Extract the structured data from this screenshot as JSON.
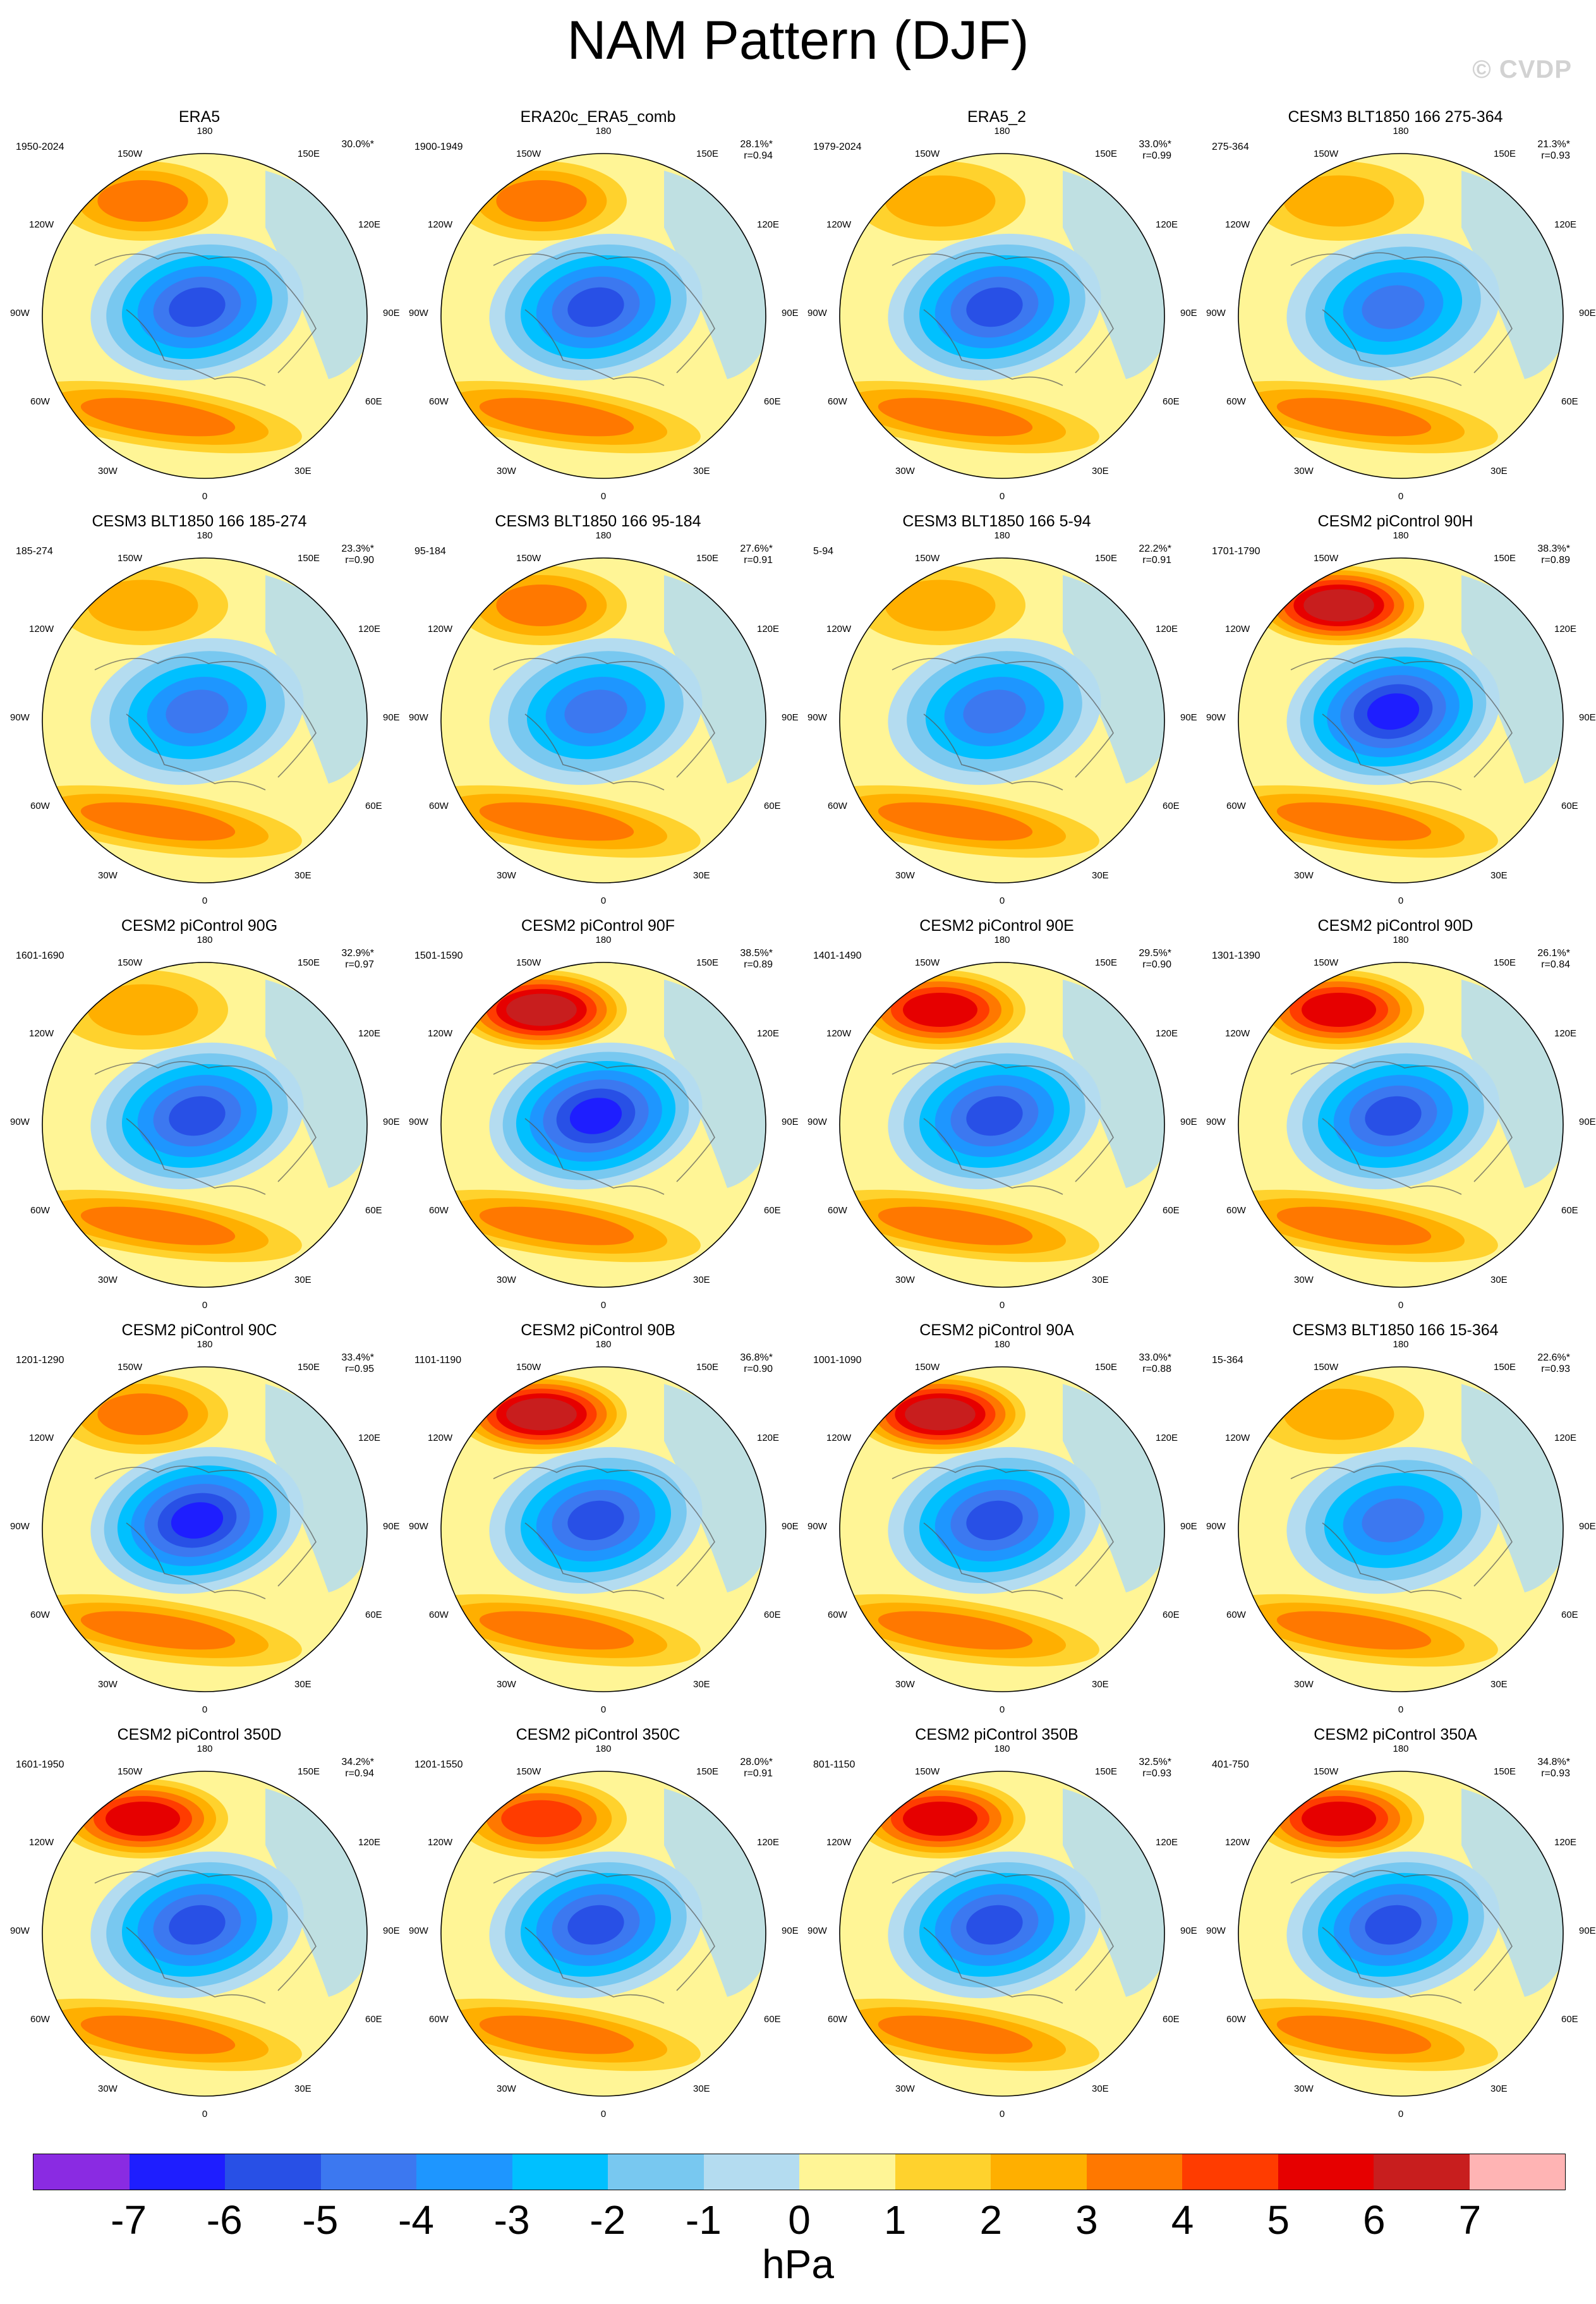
{
  "title": "NAM Pattern (DJF)",
  "watermark": "© CVDP",
  "longitude_labels": {
    "top": "180",
    "bottom": "0",
    "left_upper": "120W",
    "left_mid": "90W",
    "left_lower": "60W",
    "right_upper": "120E",
    "right_mid": "90E",
    "right_lower": "60E",
    "top_left": "150W",
    "top_right": "150E",
    "bottom_left": "30W",
    "bottom_right": "30E"
  },
  "panels": [
    {
      "name": "ERA5",
      "years": "1950-2024",
      "pct": "30.0%*",
      "r": "",
      "hi_level": 3,
      "lo_level": 5
    },
    {
      "name": "ERA20c_ERA5_comb",
      "years": "1900-1949",
      "pct": "28.1%*",
      "r": "r=0.94",
      "hi_level": 3,
      "lo_level": 5
    },
    {
      "name": "ERA5_2",
      "years": "1979-2024",
      "pct": "33.0%*",
      "r": "r=0.99",
      "hi_level": 2,
      "lo_level": 5
    },
    {
      "name": "CESM3 BLT1850 166 275-364",
      "years": "275-364",
      "pct": "21.3%*",
      "r": "r=0.93",
      "hi_level": 2,
      "lo_level": 4
    },
    {
      "name": "CESM3 BLT1850 166 185-274",
      "years": "185-274",
      "pct": "23.3%*",
      "r": "r=0.90",
      "hi_level": 2,
      "lo_level": 4
    },
    {
      "name": "CESM3 BLT1850 166 95-184",
      "years": "95-184",
      "pct": "27.6%*",
      "r": "r=0.91",
      "hi_level": 3,
      "lo_level": 4
    },
    {
      "name": "CESM3 BLT1850 166 5-94",
      "years": "5-94",
      "pct": "22.2%*",
      "r": "r=0.91",
      "hi_level": 2,
      "lo_level": 4
    },
    {
      "name": "CESM2 piControl 90H",
      "years": "1701-1790",
      "pct": "38.3%*",
      "r": "r=0.89",
      "hi_level": 6,
      "lo_level": 6
    },
    {
      "name": "CESM2 piControl 90G",
      "years": "1601-1690",
      "pct": "32.9%*",
      "r": "r=0.97",
      "hi_level": 2,
      "lo_level": 5
    },
    {
      "name": "CESM2 piControl 90F",
      "years": "1501-1590",
      "pct": "38.5%*",
      "r": "r=0.89",
      "hi_level": 6,
      "lo_level": 6
    },
    {
      "name": "CESM2 piControl 90E",
      "years": "1401-1490",
      "pct": "29.5%*",
      "r": "r=0.90",
      "hi_level": 5,
      "lo_level": 5
    },
    {
      "name": "CESM2 piControl 90D",
      "years": "1301-1390",
      "pct": "26.1%*",
      "r": "r=0.84",
      "hi_level": 5,
      "lo_level": 5
    },
    {
      "name": "CESM2 piControl 90C",
      "years": "1201-1290",
      "pct": "33.4%*",
      "r": "r=0.95",
      "hi_level": 3,
      "lo_level": 6
    },
    {
      "name": "CESM2 piControl 90B",
      "years": "1101-1190",
      "pct": "36.8%*",
      "r": "r=0.90",
      "hi_level": 6,
      "lo_level": 5
    },
    {
      "name": "CESM2 piControl 90A",
      "years": "1001-1090",
      "pct": "33.0%*",
      "r": "r=0.88",
      "hi_level": 6,
      "lo_level": 5
    },
    {
      "name": "CESM3 BLT1850 166 15-364",
      "years": "15-364",
      "pct": "22.6%*",
      "r": "r=0.93",
      "hi_level": 2,
      "lo_level": 4
    },
    {
      "name": "CESM2 piControl 350D",
      "years": "1601-1950",
      "pct": "34.2%*",
      "r": "r=0.94",
      "hi_level": 5,
      "lo_level": 5
    },
    {
      "name": "CESM2 piControl 350C",
      "years": "1201-1550",
      "pct": "28.0%*",
      "r": "r=0.91",
      "hi_level": 4,
      "lo_level": 5
    },
    {
      "name": "CESM2 piControl 350B",
      "years": "801-1150",
      "pct": "32.5%*",
      "r": "r=0.93",
      "hi_level": 5,
      "lo_level": 5
    },
    {
      "name": "CESM2 piControl 350A",
      "years": "401-750",
      "pct": "34.8%*",
      "r": "r=0.93",
      "hi_level": 5,
      "lo_level": 5
    }
  ],
  "colorbar": {
    "colors": [
      "#8a2be2",
      "#1e1eff",
      "#2850e6",
      "#3c78f0",
      "#1e96ff",
      "#00c0ff",
      "#78c8f0",
      "#b4dcf0",
      "#fff596",
      "#ffd22d",
      "#ffaf00",
      "#ff7800",
      "#ff3c00",
      "#e60000",
      "#c81e1e",
      "#ffb4b4"
    ],
    "labels": [
      "-7",
      "-6",
      "-5",
      "-4",
      "-3",
      "-2",
      "-1",
      "0",
      "1",
      "2",
      "3",
      "4",
      "5",
      "6",
      "7"
    ],
    "unit": "hPa"
  }
}
